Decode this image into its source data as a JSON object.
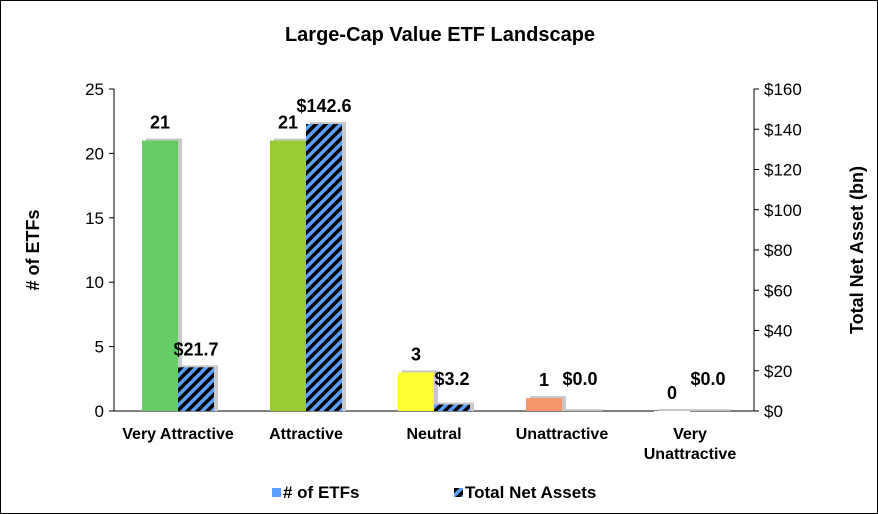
{
  "chart_data": {
    "type": "bar",
    "title": "Large-Cap Value ETF Landscape",
    "categories": [
      "Very Attractive",
      "Attractive",
      "Neutral",
      "Unattractive",
      "Very Unattractive"
    ],
    "category_lines": [
      [
        "Very Attractive"
      ],
      [
        "Attractive"
      ],
      [
        "Neutral"
      ],
      [
        "Unattractive"
      ],
      [
        "Very",
        "Unattractive"
      ]
    ],
    "series": [
      {
        "name": "# of ETFs",
        "axis": "left",
        "values": [
          21,
          21,
          3,
          1,
          0
        ],
        "labels": [
          "21",
          "21",
          "3",
          "1",
          "0"
        ],
        "colors": [
          "#66cc66",
          "#99cc33",
          "#ffff33",
          "#f4956a",
          "#ffffff"
        ]
      },
      {
        "name": "Total Net Assets",
        "axis": "right",
        "values": [
          21.7,
          142.6,
          3.2,
          0.0,
          0.0
        ],
        "labels": [
          "$21.7",
          "$142.6",
          "$3.2",
          "$0.0",
          "$0.0"
        ],
        "pattern": "diagonal-stripes",
        "colors": [
          "#5aa0ff",
          "#000000"
        ]
      }
    ],
    "ylabel": "# of ETFs",
    "ylim": [
      0,
      25
    ],
    "yticks": [
      "0",
      "5",
      "10",
      "15",
      "20",
      "25"
    ],
    "y2label": "Total Net Asset (bn)",
    "y2lim": [
      0,
      160
    ],
    "y2ticks": [
      "$0",
      "$20",
      "$40",
      "$60",
      "$80",
      "$100",
      "$120",
      "$140",
      "$160"
    ],
    "grid": false,
    "legend_position": "bottom",
    "legend_colors": [
      "#5aa0ff",
      "#000000"
    ]
  }
}
